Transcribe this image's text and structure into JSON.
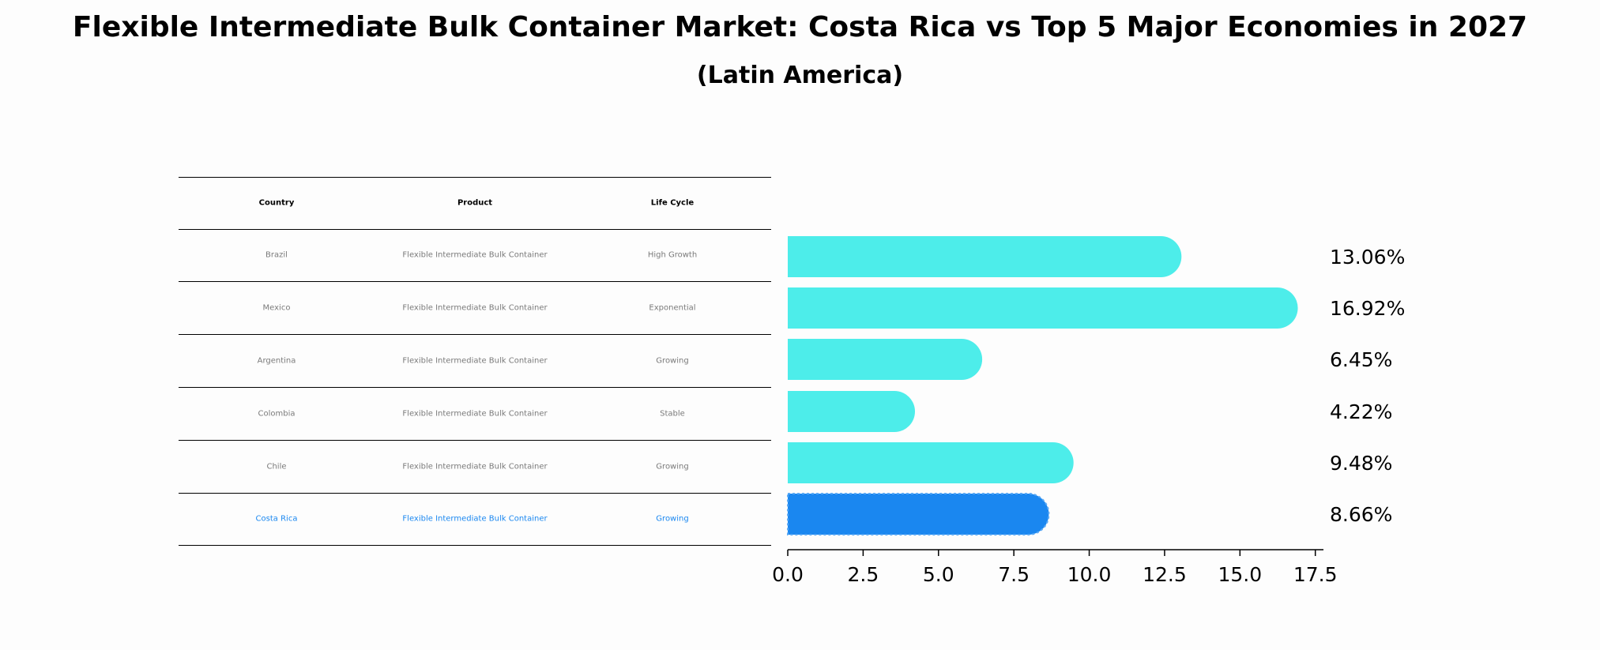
{
  "title": "Flexible Intermediate Bulk Container Market: Costa Rica vs Top 5 Major Economies in 2027",
  "subtitle": "(Latin America)",
  "table": {
    "headers": [
      "Country",
      "Product",
      "Life Cycle"
    ],
    "rows": [
      [
        "Brazil",
        "Flexible Intermediate Bulk Container",
        "High Growth"
      ],
      [
        "Mexico",
        "Flexible Intermediate Bulk Container",
        "Exponential"
      ],
      [
        "Argentina",
        "Flexible Intermediate Bulk Container",
        "Growing"
      ],
      [
        "Colombia",
        "Flexible Intermediate Bulk Container",
        "Stable"
      ],
      [
        "Chile",
        "Flexible Intermediate Bulk Container",
        "Growing"
      ],
      [
        "Costa Rica",
        "Flexible Intermediate Bulk Container",
        "Growing"
      ]
    ],
    "highlight_row": 5
  },
  "chart_data": {
    "type": "bar",
    "orientation": "horizontal",
    "categories": [
      "Brazil",
      "Mexico",
      "Argentina",
      "Colombia",
      "Chile",
      "Costa Rica"
    ],
    "values": [
      13.06,
      16.92,
      6.45,
      4.22,
      9.48,
      8.66
    ],
    "value_labels": [
      "13.06%",
      "16.92%",
      "6.45%",
      "4.22%",
      "9.48%",
      "8.66%"
    ],
    "xlim": [
      0,
      17.77
    ],
    "xticks": [
      0.0,
      2.5,
      5.0,
      7.5,
      10.0,
      12.5,
      15.0,
      17.5
    ],
    "xtick_labels": [
      "0.0",
      "2.5",
      "5.0",
      "7.5",
      "10.0",
      "12.5",
      "15.0",
      "17.5"
    ],
    "highlight": "Costa Rica",
    "colors": {
      "bar": "#4dedea",
      "highlight": "#1a87f0",
      "text": "#000000",
      "muted": "#7a7a7a"
    }
  }
}
